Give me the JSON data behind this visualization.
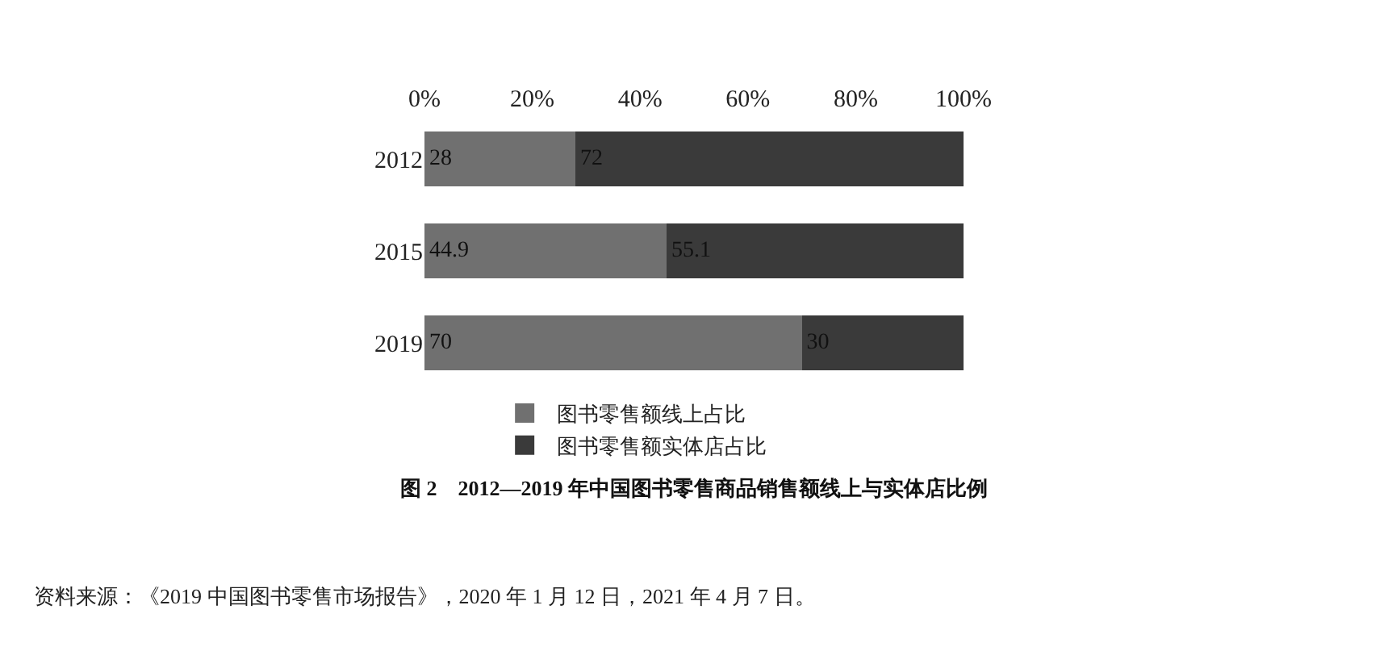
{
  "chart_data": {
    "type": "bar",
    "orientation": "horizontal",
    "stacked": true,
    "categories": [
      "2012",
      "2015",
      "2019"
    ],
    "series": [
      {
        "name": "图书零售额线上占比",
        "color": "#707070",
        "values": [
          28,
          44.9,
          70
        ]
      },
      {
        "name": "图书零售额实体店占比",
        "color": "#3a3a3a",
        "values": [
          72,
          55.1,
          30
        ]
      }
    ],
    "xlim": [
      0,
      100
    ],
    "xticks": [
      {
        "value": 0,
        "label": "0%"
      },
      {
        "value": 20,
        "label": "20%"
      },
      {
        "value": 40,
        "label": "40%"
      },
      {
        "value": 60,
        "label": "60%"
      },
      {
        "value": 80,
        "label": "80%"
      },
      {
        "value": 100,
        "label": "100%"
      }
    ],
    "data_labels": true,
    "legend": "bottom",
    "title": "图 2　2012—2019 年中国图书零售商品销售额线上与实体店比例",
    "annotations": [
      "资料来源：《2019 中国图书零售市场报告》，2020 年 1 月 12 日，2021 年 4 月 7 日。"
    ]
  }
}
